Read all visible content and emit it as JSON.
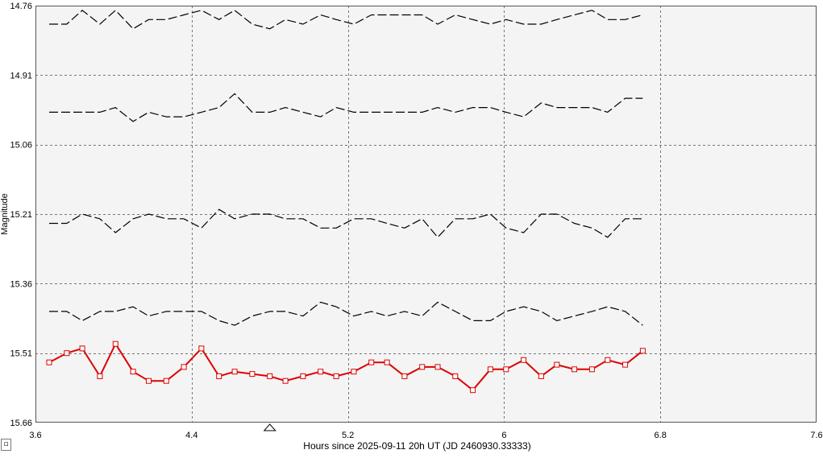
{
  "chart_data": {
    "type": "line",
    "xlabel": "Hours since 2025-09-11 20h UT (JD 2460930.33333)",
    "ylabel": "Magnitude",
    "xlim": [
      3.6,
      7.6
    ],
    "ylim": [
      14.76,
      15.66
    ],
    "y_inverted": true,
    "grid": true,
    "xticks": [
      "3.6",
      "4.4",
      "5.2",
      "6",
      "6.8",
      "7.6"
    ],
    "xtick_values": [
      3.6,
      4.4,
      5.2,
      6.0,
      6.8,
      7.6
    ],
    "yticks": [
      "14.76",
      "14.91",
      "15.06",
      "15.21",
      "15.36",
      "15.51",
      "15.66"
    ],
    "ytick_values": [
      14.76,
      14.91,
      15.06,
      15.21,
      15.36,
      15.51,
      15.66
    ],
    "x": [
      3.67,
      3.76,
      3.84,
      3.93,
      4.01,
      4.1,
      4.18,
      4.27,
      4.36,
      4.45,
      4.54,
      4.62,
      4.71,
      4.8,
      4.88,
      4.97,
      5.06,
      5.14,
      5.23,
      5.32,
      5.4,
      5.49,
      5.58,
      5.66,
      5.75,
      5.84,
      5.93,
      6.01,
      6.1,
      6.19,
      6.27,
      6.36,
      6.45,
      6.53,
      6.62,
      6.71
    ],
    "series": [
      {
        "color": "#000000",
        "style": "dashed",
        "markers": false,
        "values": [
          14.8,
          14.8,
          14.77,
          14.8,
          14.77,
          14.81,
          14.79,
          14.79,
          14.78,
          14.77,
          14.79,
          14.77,
          14.8,
          14.81,
          14.79,
          14.8,
          14.78,
          14.79,
          14.8,
          14.78,
          14.78,
          14.78,
          14.78,
          14.8,
          14.78,
          14.79,
          14.8,
          14.79,
          14.8,
          14.8,
          14.79,
          14.78,
          14.77,
          14.79,
          14.79,
          14.78
        ]
      },
      {
        "color": "#000000",
        "style": "dashed",
        "markers": false,
        "values": [
          14.99,
          14.99,
          14.99,
          14.99,
          14.98,
          15.01,
          14.99,
          15.0,
          15.0,
          14.99,
          14.98,
          14.95,
          14.99,
          14.99,
          14.98,
          14.99,
          15.0,
          14.98,
          14.99,
          14.99,
          14.99,
          14.99,
          14.99,
          14.98,
          14.99,
          14.98,
          14.98,
          14.99,
          15.0,
          14.97,
          14.98,
          14.98,
          14.98,
          14.99,
          14.96,
          14.96
        ]
      },
      {
        "color": "#000000",
        "style": "dashed",
        "markers": false,
        "values": [
          15.23,
          15.23,
          15.21,
          15.22,
          15.25,
          15.22,
          15.21,
          15.22,
          15.22,
          15.24,
          15.2,
          15.22,
          15.21,
          15.21,
          15.22,
          15.22,
          15.24,
          15.24,
          15.22,
          15.22,
          15.23,
          15.24,
          15.22,
          15.26,
          15.22,
          15.22,
          15.21,
          15.24,
          15.25,
          15.21,
          15.21,
          15.23,
          15.24,
          15.26,
          15.22,
          15.22
        ]
      },
      {
        "color": "#000000",
        "style": "dashed",
        "markers": false,
        "values": [
          15.42,
          15.42,
          15.44,
          15.42,
          15.42,
          15.41,
          15.43,
          15.42,
          15.42,
          15.42,
          15.44,
          15.45,
          15.43,
          15.42,
          15.42,
          15.43,
          15.4,
          15.41,
          15.43,
          15.42,
          15.43,
          15.42,
          15.43,
          15.4,
          15.42,
          15.44,
          15.44,
          15.42,
          15.41,
          15.42,
          15.44,
          15.43,
          15.42,
          15.41,
          15.42,
          15.45
        ]
      },
      {
        "color": "#dd0000",
        "style": "solid",
        "markers": true,
        "marker": "square",
        "values": [
          15.53,
          15.51,
          15.5,
          15.56,
          15.49,
          15.55,
          15.57,
          15.57,
          15.54,
          15.5,
          15.56,
          15.55,
          15.555,
          15.56,
          15.57,
          15.56,
          15.55,
          15.56,
          15.55,
          15.53,
          15.53,
          15.56,
          15.54,
          15.54,
          15.56,
          15.59,
          15.545,
          15.545,
          15.525,
          15.56,
          15.535,
          15.545,
          15.545,
          15.525,
          15.535,
          15.505
        ]
      }
    ],
    "cursor_x": 4.8
  },
  "ui": {
    "corner_button_label": "▫"
  }
}
